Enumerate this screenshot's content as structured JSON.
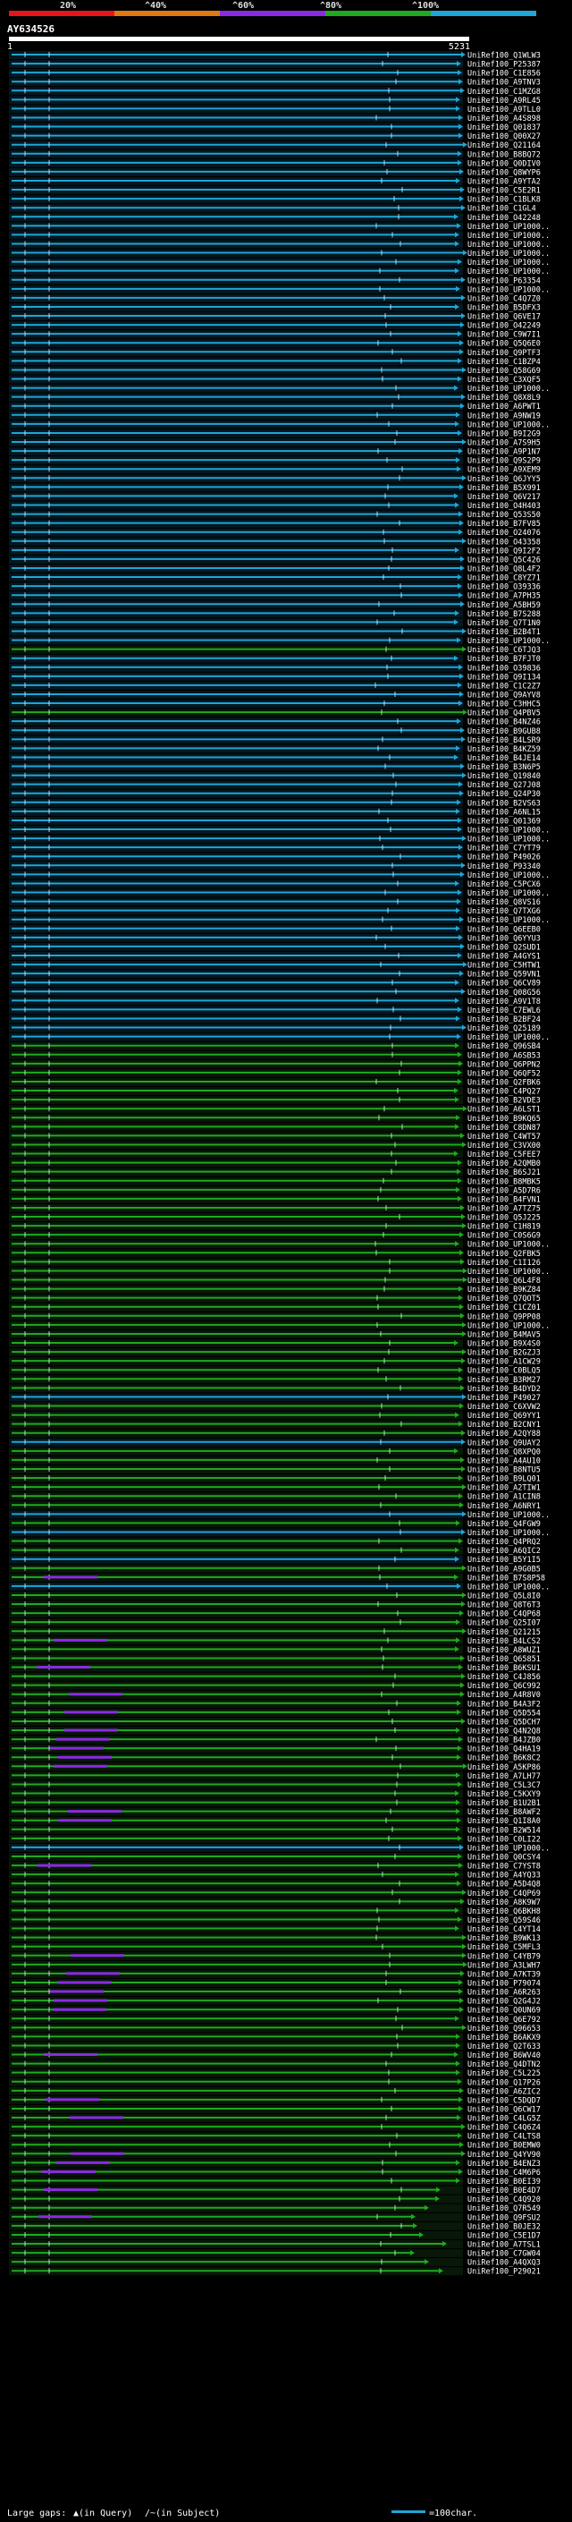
{
  "chart_data": {
    "type": "alignment-overview",
    "query_id": "AY634526",
    "query_start": "1",
    "query_end": "5231",
    "query_length": 5231,
    "scale_marks": [
      "20%",
      "^40%",
      "^60%",
      "^80%",
      "^100%"
    ],
    "identity_bands": [
      {
        "label": "0-20%",
        "color": "#e8141c"
      },
      {
        "label": "20-40%",
        "color": "#e07a10"
      },
      {
        "label": "40-60%",
        "color": "#8a2be2"
      },
      {
        "label": "60-80%",
        "color": "#1faa1f"
      },
      {
        "label": "80-100%",
        "color": "#1ea6d6"
      }
    ],
    "legend": {
      "large_gaps_label": "Large gaps:",
      "gap_in_query": "▲(in Query)",
      "gap_in_subject": "/~(in Subject)",
      "scale_label": "=100char."
    },
    "rows": [
      {
        "label": "UniRef100_Q1WLW3",
        "identity": 98
      },
      {
        "label": "UniRef100_P25387",
        "identity": 98
      },
      {
        "label": "UniRef100_C1E856",
        "identity": 97
      },
      {
        "label": "UniRef100_A9TNV3",
        "identity": 97
      },
      {
        "label": "UniRef100_C1MZG8",
        "identity": 97
      },
      {
        "label": "UniRef100_A9RL45",
        "identity": 96
      },
      {
        "label": "UniRef100_A9TLL0",
        "identity": 96
      },
      {
        "label": "UniRef100_A4S898",
        "identity": 96
      },
      {
        "label": "UniRef100_Q01837",
        "identity": 95
      },
      {
        "label": "UniRef100_Q00X27",
        "identity": 95
      },
      {
        "label": "UniRef100_Q21164",
        "identity": 95
      },
      {
        "label": "UniRef100_B8BQ72",
        "identity": 94
      },
      {
        "label": "UniRef100_Q0DIV0",
        "identity": 94
      },
      {
        "label": "UniRef100_Q8WYP6",
        "identity": 94
      },
      {
        "label": "UniRef100_A9YTA2",
        "identity": 93
      },
      {
        "label": "UniRef100_C5E2R1",
        "identity": 93
      },
      {
        "label": "UniRef100_C1BLK8",
        "identity": 93
      },
      {
        "label": "UniRef100_C1GL4",
        "identity": 92
      },
      {
        "label": "UniRef100_O42248",
        "identity": 92
      },
      {
        "label": "UniRef100_UP1000..",
        "identity": 92
      },
      {
        "label": "UniRef100_UP1000..",
        "identity": 91
      },
      {
        "label": "UniRef100_UP1000..",
        "identity": 91
      },
      {
        "label": "UniRef100_UP1000..",
        "identity": 91
      },
      {
        "label": "UniRef100_UP1000..",
        "identity": 90
      },
      {
        "label": "UniRef100_UP1000..",
        "identity": 90
      },
      {
        "label": "UniRef100_P63354",
        "identity": 90
      },
      {
        "label": "UniRef100_UP1000..",
        "identity": 89
      },
      {
        "label": "UniRef100_C4Q7Z0",
        "identity": 89
      },
      {
        "label": "UniRef100_B5DFX3",
        "identity": 89
      },
      {
        "label": "UniRef100_Q6VE17",
        "identity": 88
      },
      {
        "label": "UniRef100_O42249",
        "identity": 88
      },
      {
        "label": "UniRef100_C9W7I1",
        "identity": 88
      },
      {
        "label": "UniRef100_Q5Q6E0",
        "identity": 88
      },
      {
        "label": "UniRef100_Q9PTF3",
        "identity": 87
      },
      {
        "label": "UniRef100_C1BZP4",
        "identity": 87
      },
      {
        "label": "UniRef100_Q58G69",
        "identity": 87
      },
      {
        "label": "UniRef100_C3XQF5",
        "identity": 87
      },
      {
        "label": "UniRef100_UP1000..",
        "identity": 86
      },
      {
        "label": "UniRef100_Q8X8L9",
        "identity": 86
      },
      {
        "label": "UniRef100_A6PWT1",
        "identity": 86
      },
      {
        "label": "UniRef100_A9NW19",
        "identity": 86
      },
      {
        "label": "UniRef100_UP1000..",
        "identity": 85
      },
      {
        "label": "UniRef100_B9I2G9",
        "identity": 85
      },
      {
        "label": "UniRef100_A7S9H5",
        "identity": 85
      },
      {
        "label": "UniRef100_A9P1N7",
        "identity": 85
      },
      {
        "label": "UniRef100_Q9S2P9",
        "identity": 84
      },
      {
        "label": "UniRef100_A9XEM9",
        "identity": 84
      },
      {
        "label": "UniRef100_Q6JYY5",
        "identity": 84
      },
      {
        "label": "UniRef100_B5X991",
        "identity": 84
      },
      {
        "label": "UniRef100_Q6V217",
        "identity": 83
      },
      {
        "label": "UniRef100_O4H403",
        "identity": 83
      },
      {
        "label": "UniRef100_Q53S50",
        "identity": 83
      },
      {
        "label": "UniRef100_B7FV85",
        "identity": 83
      },
      {
        "label": "UniRef100_O24076",
        "identity": 82
      },
      {
        "label": "UniRef100_O43358",
        "identity": 82
      },
      {
        "label": "UniRef100_Q9I2F2",
        "identity": 82
      },
      {
        "label": "UniRef100_Q5C426",
        "identity": 82
      },
      {
        "label": "UniRef100_Q8L4F2",
        "identity": 81
      },
      {
        "label": "UniRef100_C8YZ71",
        "identity": 81
      },
      {
        "label": "UniRef100_O39336",
        "identity": 81
      },
      {
        "label": "UniRef100_A7PH35",
        "identity": 81
      },
      {
        "label": "UniRef100_A5BH59",
        "identity": 81
      },
      {
        "label": "UniRef100_B7S288",
        "identity": 80
      },
      {
        "label": "UniRef100_Q7T1N0",
        "identity": 80
      },
      {
        "label": "UniRef100_B2B4T1",
        "identity": 80
      },
      {
        "label": "UniRef100_UP1000..",
        "identity": 80
      },
      {
        "label": "UniRef100_C6TJQ3",
        "identity": 79
      },
      {
        "label": "UniRef100_B7FJT0",
        "identity": 80
      },
      {
        "label": "UniRef100_O39836",
        "identity": 80
      },
      {
        "label": "UniRef100_Q9I134",
        "identity": 80
      },
      {
        "label": "UniRef100_C1C2Z7",
        "identity": 80
      },
      {
        "label": "UniRef100_Q9AYV8",
        "identity": 80
      },
      {
        "label": "UniRef100_C3HHC5",
        "identity": 80
      },
      {
        "label": "UniRef100_Q4PBV5",
        "identity": 79
      },
      {
        "label": "UniRef100_B4NZ46",
        "identity": 80
      },
      {
        "label": "UniRef100_B9GUB8",
        "identity": 80
      },
      {
        "label": "UniRef100_B4LSR9",
        "identity": 80
      },
      {
        "label": "UniRef100_B4KZ59",
        "identity": 80
      },
      {
        "label": "UniRef100_B4JE14",
        "identity": 80
      },
      {
        "label": "UniRef100_B3N6P5",
        "identity": 80
      },
      {
        "label": "UniRef100_Q19840",
        "identity": 80
      },
      {
        "label": "UniRef100_Q27J08",
        "identity": 80
      },
      {
        "label": "UniRef100_Q24P30",
        "identity": 80
      },
      {
        "label": "UniRef100_B2VS63",
        "identity": 80
      },
      {
        "label": "UniRef100_A6NL15",
        "identity": 80
      },
      {
        "label": "UniRef100_Q01369",
        "identity": 80
      },
      {
        "label": "UniRef100_UP1000..",
        "identity": 80
      },
      {
        "label": "UniRef100_UP1000..",
        "identity": 80
      },
      {
        "label": "UniRef100_C7YT79",
        "identity": 80
      },
      {
        "label": "UniRef100_P49026",
        "identity": 80
      },
      {
        "label": "UniRef100_P93340",
        "identity": 80
      },
      {
        "label": "UniRef100_UP1000..",
        "identity": 80
      },
      {
        "label": "UniRef100_C5PCX6",
        "identity": 80
      },
      {
        "label": "UniRef100_UP1000..",
        "identity": 80
      },
      {
        "label": "UniRef100_Q8VS16",
        "identity": 80
      },
      {
        "label": "UniRef100_Q7TXG6",
        "identity": 80
      },
      {
        "label": "UniRef100_UP1000..",
        "identity": 80
      },
      {
        "label": "UniRef100_Q6EEB0",
        "identity": 80
      },
      {
        "label": "UniRef100_Q6YYU3",
        "identity": 80
      },
      {
        "label": "UniRef100_Q2SUD1",
        "identity": 80
      },
      {
        "label": "UniRef100_A4GYS1",
        "identity": 80
      },
      {
        "label": "UniRef100_C5HTW1",
        "identity": 80
      },
      {
        "label": "UniRef100_Q59VN1",
        "identity": 80
      },
      {
        "label": "UniRef100_Q6CV89",
        "identity": 80
      },
      {
        "label": "UniRef100_Q08G56",
        "identity": 80
      },
      {
        "label": "UniRef100_A9V1T8",
        "identity": 80
      },
      {
        "label": "UniRef100_C7EWL6",
        "identity": 80
      },
      {
        "label": "UniRef100_B2BF24",
        "identity": 80
      },
      {
        "label": "UniRef100_Q25189",
        "identity": 80
      },
      {
        "label": "UniRef100_UP1000..",
        "identity": 80
      },
      {
        "label": "UniRef100_Q96SB4",
        "identity": 79
      },
      {
        "label": "UniRef100_A6SB53",
        "identity": 79
      },
      {
        "label": "UniRef100_Q6PPN2",
        "identity": 79
      },
      {
        "label": "UniRef100_Q6QF52",
        "identity": 78
      },
      {
        "label": "UniRef100_Q2FBK6",
        "identity": 78
      },
      {
        "label": "UniRef100_C4PQ27",
        "identity": 78
      },
      {
        "label": "UniRef100_B2VDE3",
        "identity": 78
      },
      {
        "label": "UniRef100_A6LST1",
        "identity": 77
      },
      {
        "label": "UniRef100_B9KQ65",
        "identity": 77
      },
      {
        "label": "UniRef100_C8DN87",
        "identity": 77
      },
      {
        "label": "UniRef100_C4WT57",
        "identity": 77
      },
      {
        "label": "UniRef100_C3VX00",
        "identity": 76
      },
      {
        "label": "UniRef100_C5FEE7",
        "identity": 76
      },
      {
        "label": "UniRef100_A2QMB0",
        "identity": 76
      },
      {
        "label": "UniRef100_B6SJ21",
        "identity": 76
      },
      {
        "label": "UniRef100_B8MBK5",
        "identity": 75
      },
      {
        "label": "UniRef100_A5D7R6",
        "identity": 75
      },
      {
        "label": "UniRef100_B4FVN1",
        "identity": 75
      },
      {
        "label": "UniRef100_A7TZ75",
        "identity": 75
      },
      {
        "label": "UniRef100_Q5J225",
        "identity": 74
      },
      {
        "label": "UniRef100_C1H819",
        "identity": 74
      },
      {
        "label": "UniRef100_C0S6G9",
        "identity": 74
      },
      {
        "label": "UniRef100_UP1000..",
        "identity": 74
      },
      {
        "label": "UniRef100_Q2FBK5",
        "identity": 73
      },
      {
        "label": "UniRef100_C1I126",
        "identity": 73
      },
      {
        "label": "UniRef100_UP1000..",
        "identity": 73
      },
      {
        "label": "UniRef100_Q6L4F8",
        "identity": 73
      },
      {
        "label": "UniRef100_B9KZ84",
        "identity": 72
      },
      {
        "label": "UniRef100_Q7QOT5",
        "identity": 72
      },
      {
        "label": "UniRef100_C1CZ01",
        "identity": 72
      },
      {
        "label": "UniRef100_Q9PP08",
        "identity": 72
      },
      {
        "label": "UniRef100_UP1000..",
        "identity": 71
      },
      {
        "label": "UniRef100_B4MAV5",
        "identity": 71
      },
      {
        "label": "UniRef100_B9X4S0",
        "identity": 71
      },
      {
        "label": "UniRef100_B2GZJ3",
        "identity": 71
      },
      {
        "label": "UniRef100_A1CW29",
        "identity": 70
      },
      {
        "label": "UniRef100_C0BLQ5",
        "identity": 70
      },
      {
        "label": "UniRef100_B3RM27",
        "identity": 70
      },
      {
        "label": "UniRef100_B4DYD2",
        "identity": 70
      },
      {
        "label": "UniRef100_P49027",
        "identity": 82
      },
      {
        "label": "UniRef100_C6XVW2",
        "identity": 70
      },
      {
        "label": "UniRef100_Q69YY1",
        "identity": 70
      },
      {
        "label": "UniRef100_B2CNY1",
        "identity": 69
      },
      {
        "label": "UniRef100_A2QY88",
        "identity": 69
      },
      {
        "label": "UniRef100_Q9UAY2",
        "identity": 84
      },
      {
        "label": "UniRef100_Q8XPQ0",
        "identity": 69
      },
      {
        "label": "UniRef100_A4AU10",
        "identity": 68
      },
      {
        "label": "UniRef100_B8NTU5",
        "identity": 68
      },
      {
        "label": "UniRef100_B9LQ01",
        "identity": 68
      },
      {
        "label": "UniRef100_A2TIW1",
        "identity": 68
      },
      {
        "label": "UniRef100_A1CIN8",
        "identity": 67
      },
      {
        "label": "UniRef100_A6NRY1",
        "identity": 67
      },
      {
        "label": "UniRef100_UP1000..",
        "identity": 86
      },
      {
        "label": "UniRef100_Q4FGW9",
        "identity": 67
      },
      {
        "label": "UniRef100_UP1000..",
        "identity": 85
      },
      {
        "label": "UniRef100_Q4PRQ2",
        "identity": 66
      },
      {
        "label": "UniRef100_A6QIC2",
        "identity": 66
      },
      {
        "label": "UniRef100_B5Y1I5",
        "identity": 86
      },
      {
        "label": "UniRef100_A9G0B5",
        "identity": 66
      },
      {
        "label": "UniRef100_B7S8P58",
        "identity": 65
      },
      {
        "label": "UniRef100_UP1000..",
        "identity": 84
      },
      {
        "label": "UniRef100_Q5L8I0",
        "identity": 65
      },
      {
        "label": "UniRef100_Q8T6T3",
        "identity": 65
      },
      {
        "label": "UniRef100_C4QP68",
        "identity": 64
      },
      {
        "label": "UniRef100_Q25I07",
        "identity": 64
      },
      {
        "label": "UniRef100_Q21215",
        "identity": 64
      },
      {
        "label": "UniRef100_B4LCS2",
        "identity": 64
      },
      {
        "label": "UniRef100_A8WUZ1",
        "identity": 63
      },
      {
        "label": "UniRef100_Q65851",
        "identity": 63
      },
      {
        "label": "UniRef100_B6KSU1",
        "identity": 63
      },
      {
        "label": "UniRef100_C4J856",
        "identity": 63
      },
      {
        "label": "UniRef100_Q6C992",
        "identity": 62
      },
      {
        "label": "UniRef100_A4R8V0",
        "identity": 62
      },
      {
        "label": "UniRef100_B4A3F2",
        "identity": 62
      },
      {
        "label": "UniRef100_Q5D554",
        "identity": 62
      },
      {
        "label": "UniRef100_Q5DCH7",
        "identity": 61
      },
      {
        "label": "UniRef100_Q4N2Q8",
        "identity": 61
      },
      {
        "label": "UniRef100_B4JZB0",
        "identity": 61
      },
      {
        "label": "UniRef100_Q4HA19",
        "identity": 61
      },
      {
        "label": "UniRef100_B6K8C2",
        "identity": 60
      },
      {
        "label": "UniRef100_A5KP86",
        "identity": 60
      },
      {
        "label": "UniRef100_A7LH77",
        "identity": 60
      },
      {
        "label": "UniRef100_C5L3C7",
        "identity": 60
      },
      {
        "label": "UniRef100_C5KXY9",
        "identity": 60
      },
      {
        "label": "UniRef100_B1U2B1",
        "identity": 60
      },
      {
        "label": "UniRef100_B8AWF2",
        "identity": 60
      },
      {
        "label": "UniRef100_Q1I8A0",
        "identity": 60
      },
      {
        "label": "UniRef100_B2W514",
        "identity": 60
      },
      {
        "label": "UniRef100_C0LI22",
        "identity": 60
      },
      {
        "label": "UniRef100_UP1000..",
        "identity": 84
      },
      {
        "label": "UniRef100_Q0CSY4",
        "identity": 60
      },
      {
        "label": "UniRef100_C7YST8",
        "identity": 60
      },
      {
        "label": "UniRef100_A4YQ33",
        "identity": 60
      },
      {
        "label": "UniRef100_A5D4Q8",
        "identity": 60
      },
      {
        "label": "UniRef100_C4QP69",
        "identity": 60
      },
      {
        "label": "UniRef100_A8K9W7",
        "identity": 60
      },
      {
        "label": "UniRef100_Q6BKH8",
        "identity": 60
      },
      {
        "label": "UniRef100_Q59S46",
        "identity": 60
      },
      {
        "label": "UniRef100_C4YT14",
        "identity": 60
      },
      {
        "label": "UniRef100_B9WK13",
        "identity": 60
      },
      {
        "label": "UniRef100_C5MFL3",
        "identity": 60
      },
      {
        "label": "UniRef100_C4YB79",
        "identity": 60
      },
      {
        "label": "UniRef100_A3LWH7",
        "identity": 60
      },
      {
        "label": "UniRef100_A7KT39",
        "identity": 60
      },
      {
        "label": "UniRef100_P79074",
        "identity": 60
      },
      {
        "label": "UniRef100_A6R263",
        "identity": 60
      },
      {
        "label": "UniRef100_Q2G4J2",
        "identity": 60
      },
      {
        "label": "UniRef100_Q0UN69",
        "identity": 60
      },
      {
        "label": "UniRef100_Q6E792",
        "identity": 60
      },
      {
        "label": "UniRef100_Q96653",
        "identity": 60
      },
      {
        "label": "UniRef100_B6AKX9",
        "identity": 60
      },
      {
        "label": "UniRef100_Q2T633",
        "identity": 60
      },
      {
        "label": "UniRef100_B6WV40",
        "identity": 60
      },
      {
        "label": "UniRef100_Q4DTN2",
        "identity": 60
      },
      {
        "label": "UniRef100_C5L225",
        "identity": 60
      },
      {
        "label": "UniRef100_Q17P26",
        "identity": 60
      },
      {
        "label": "UniRef100_A6ZIC2",
        "identity": 60
      },
      {
        "label": "UniRef100_C5DQD7",
        "identity": 60
      },
      {
        "label": "UniRef100_Q6CW17",
        "identity": 60
      },
      {
        "label": "UniRef100_C4LG5Z",
        "identity": 60
      },
      {
        "label": "UniRef100_C4Q6Z4",
        "identity": 60
      },
      {
        "label": "UniRef100_C4LTS8",
        "identity": 60
      },
      {
        "label": "UniRef100_B0EMW0",
        "identity": 60
      },
      {
        "label": "UniRef100_Q4YV90",
        "identity": 60
      },
      {
        "label": "UniRef100_B4ENZ3",
        "identity": 60
      },
      {
        "label": "UniRef100_C4M6P6",
        "identity": 60
      },
      {
        "label": "UniRef100_B0EI39",
        "identity": 60
      },
      {
        "label": "UniRef100_B0E4D7",
        "identity": 60
      },
      {
        "label": "UniRef100_C4Q920",
        "identity": 60
      },
      {
        "label": "UniRef100_Q7R549",
        "identity": 60
      },
      {
        "label": "UniRef100_Q9FSU2",
        "identity": 60
      },
      {
        "label": "UniRef100_B0JE32",
        "identity": 60
      },
      {
        "label": "UniRef100_C5E1D7",
        "identity": 60
      },
      {
        "label": "UniRef100_A7TSL1",
        "identity": 60
      },
      {
        "label": "UniRef100_C7GW04",
        "identity": 60
      },
      {
        "label": "UniRef100_A4QXQ3",
        "identity": 60
      },
      {
        "label": "UniRef100_P29021",
        "identity": 60
      }
    ]
  }
}
